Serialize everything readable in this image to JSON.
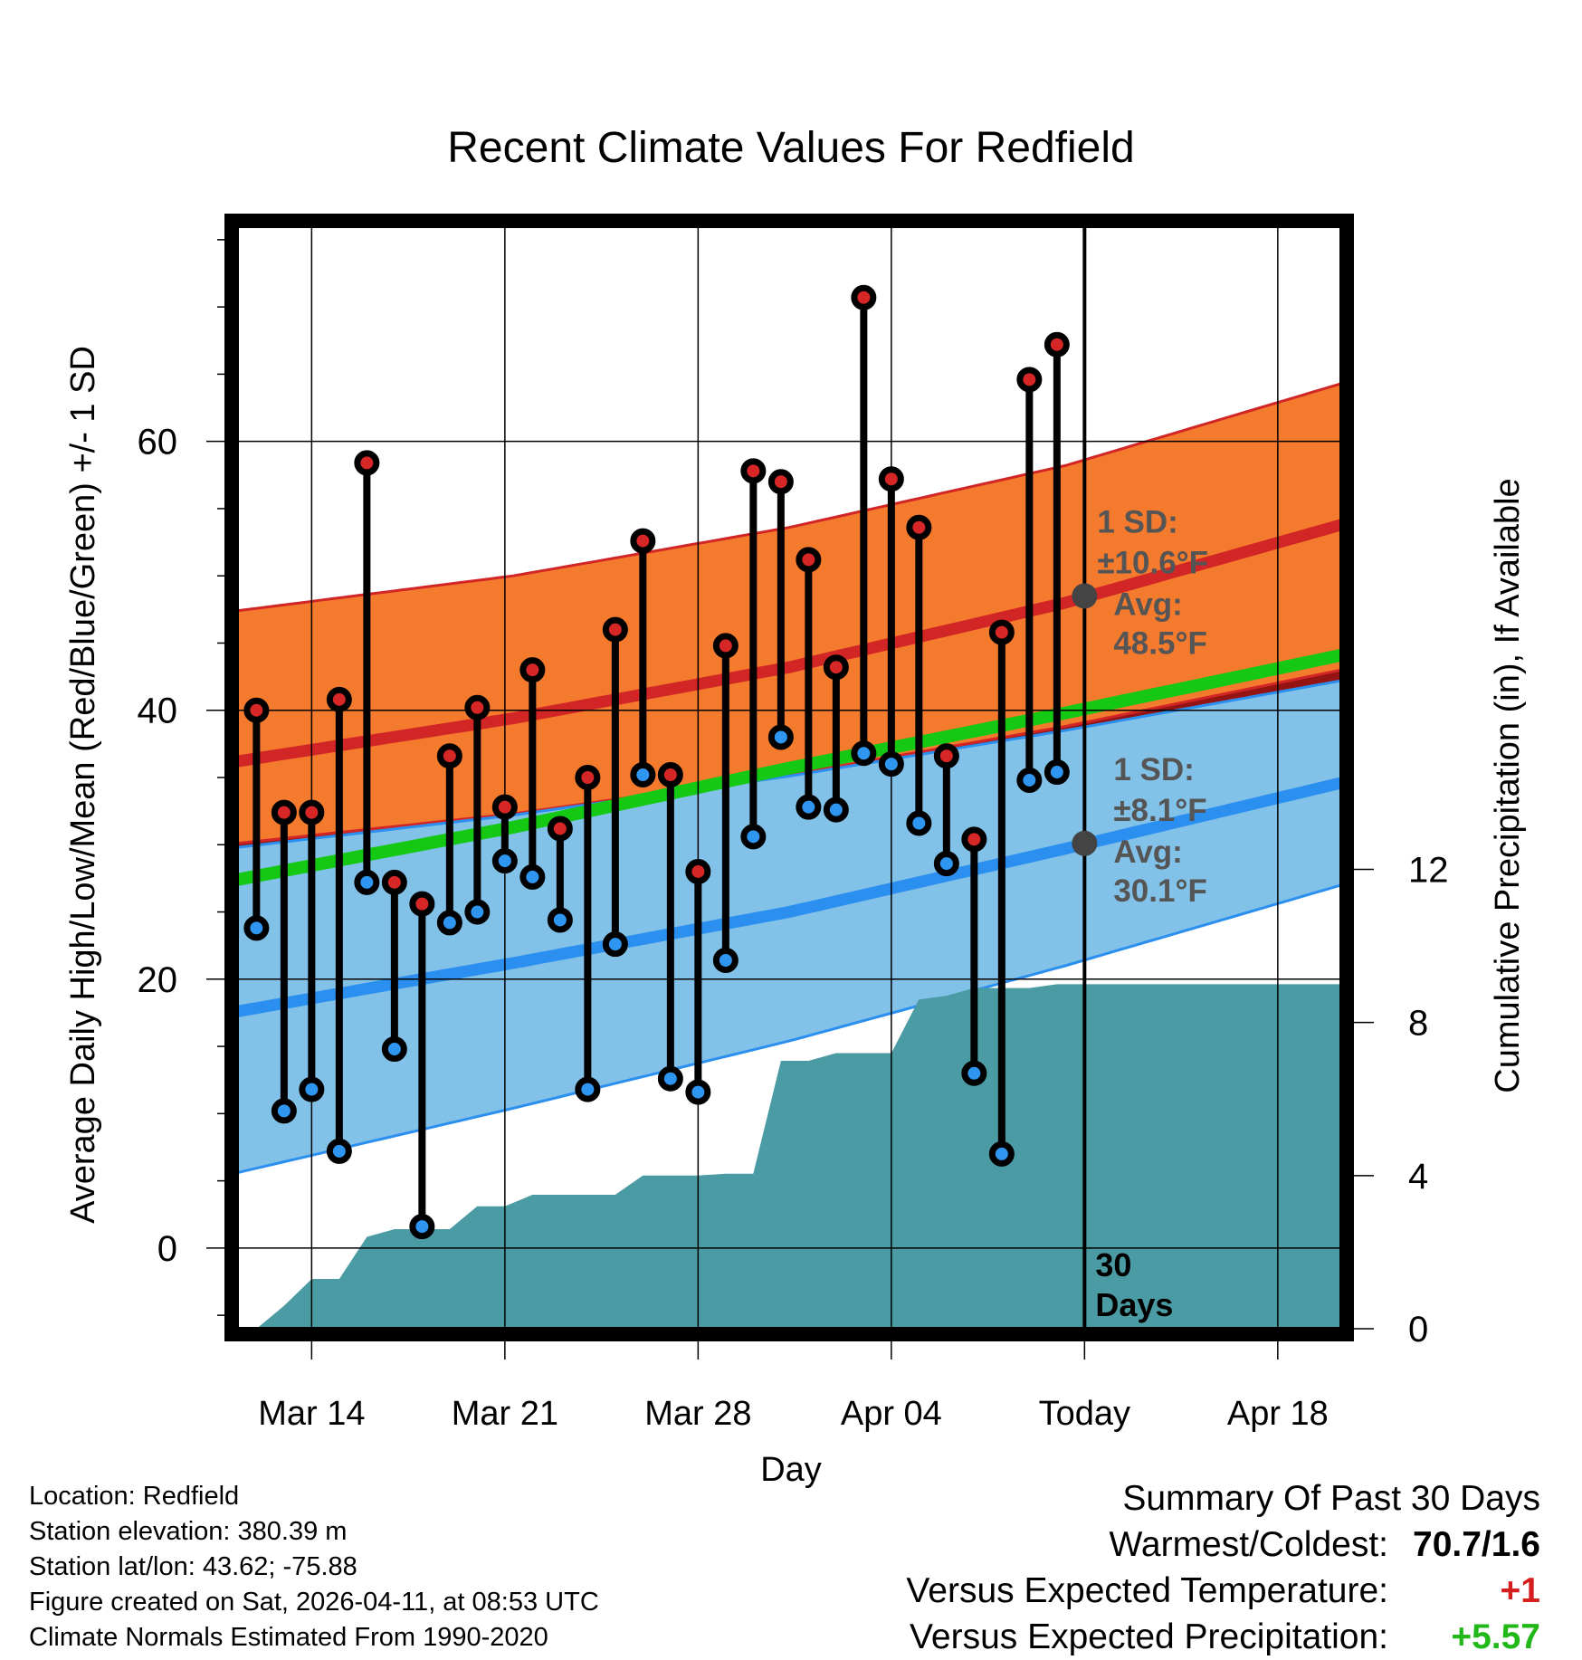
{
  "chart_data": {
    "type": "line",
    "title": "Recent Climate Values For Redfield",
    "xlabel": "Day",
    "ylabel": "Average Daily High/Low/Mean (Red/Blue/Green) +/- 1 SD",
    "y2label": "Cumulative Precipitation (in), If Available",
    "xlim": [
      0,
      40
    ],
    "ylim": [
      -6,
      76
    ],
    "y2lim": [
      0,
      28.8
    ],
    "x_ticks": [
      {
        "x": 2.7,
        "label": "Mar 14"
      },
      {
        "x": 9.7,
        "label": "Mar 21"
      },
      {
        "x": 16.7,
        "label": "Mar 28"
      },
      {
        "x": 23.7,
        "label": "Apr 04"
      },
      {
        "x": 30.7,
        "label": "Today"
      },
      {
        "x": 37.7,
        "label": "Apr 18"
      }
    ],
    "y_ticks": [
      0,
      20,
      40,
      60
    ],
    "y2_ticks": [
      0,
      4,
      8,
      12
    ],
    "today_x": 30.7,
    "today_label": "30\nDays",
    "normal_high": {
      "mean": [
        [
          0,
          36.2
        ],
        [
          10,
          39.4
        ],
        [
          20,
          43.2
        ],
        [
          30,
          48.0
        ],
        [
          40,
          53.8
        ]
      ],
      "upper": [
        [
          0,
          47.4
        ],
        [
          10,
          50.0
        ],
        [
          20,
          53.6
        ],
        [
          30,
          58.2
        ],
        [
          40,
          64.3
        ]
      ],
      "lower": [
        [
          0,
          30.1
        ],
        [
          10,
          32.3
        ],
        [
          20,
          35.2
        ],
        [
          30,
          38.8
        ],
        [
          40,
          43.0
        ]
      ],
      "sd_label": "1 SD:",
      "sd_value": "±10.6°F",
      "avg_label": "Avg:",
      "avg_value": "48.5°F",
      "today_avg": 48.5
    },
    "normal_low": {
      "mean": [
        [
          0,
          17.6
        ],
        [
          10,
          21.2
        ],
        [
          20,
          25.0
        ],
        [
          30,
          29.7
        ],
        [
          40,
          34.6
        ]
      ],
      "upper": [
        [
          0,
          29.8
        ],
        [
          10,
          32.2
        ],
        [
          20,
          35.1
        ],
        [
          30,
          38.5
        ],
        [
          40,
          42.2
        ]
      ],
      "lower": [
        [
          0,
          5.6
        ],
        [
          10,
          10.4
        ],
        [
          20,
          15.4
        ],
        [
          30,
          21.0
        ],
        [
          40,
          27.0
        ]
      ],
      "sd_label": "1 SD:",
      "sd_value": "±8.1°F",
      "avg_label": "Avg:",
      "avg_value": "30.1°F",
      "today_avg": 30.1
    },
    "normal_mean": [
      [
        0,
        27.4
      ],
      [
        10,
        31.3
      ],
      [
        20,
        35.7
      ],
      [
        30,
        39.8
      ],
      [
        40,
        44.1
      ]
    ],
    "daily": [
      {
        "x": 0.7,
        "high": 40.0,
        "low": 23.8
      },
      {
        "x": 1.7,
        "high": 32.4,
        "low": 10.2
      },
      {
        "x": 2.7,
        "high": 32.4,
        "low": 11.8
      },
      {
        "x": 3.7,
        "high": 40.8,
        "low": 7.2
      },
      {
        "x": 4.7,
        "high": 58.4,
        "low": 27.2
      },
      {
        "x": 5.7,
        "high": 27.2,
        "low": 14.8
      },
      {
        "x": 6.7,
        "high": 25.6,
        "low": 1.6
      },
      {
        "x": 7.7,
        "high": 36.6,
        "low": 24.2
      },
      {
        "x": 8.7,
        "high": 40.2,
        "low": 25.0
      },
      {
        "x": 9.7,
        "high": 32.8,
        "low": 28.8
      },
      {
        "x": 10.7,
        "high": 43.0,
        "low": 27.6
      },
      {
        "x": 11.7,
        "high": 31.2,
        "low": 24.4
      },
      {
        "x": 12.7,
        "high": 35.0,
        "low": 11.8
      },
      {
        "x": 13.7,
        "high": 46.0,
        "low": 22.6
      },
      {
        "x": 14.7,
        "high": 52.6,
        "low": 35.2
      },
      {
        "x": 15.7,
        "high": 35.2,
        "low": 12.6
      },
      {
        "x": 16.7,
        "high": 28.0,
        "low": 11.6
      },
      {
        "x": 17.7,
        "high": 44.8,
        "low": 21.4
      },
      {
        "x": 18.7,
        "high": 57.8,
        "low": 30.6
      },
      {
        "x": 19.7,
        "high": 57.0,
        "low": 38.0
      },
      {
        "x": 20.7,
        "high": 51.2,
        "low": 32.8
      },
      {
        "x": 21.7,
        "high": 43.2,
        "low": 32.6
      },
      {
        "x": 22.7,
        "high": 70.7,
        "low": 36.8
      },
      {
        "x": 23.7,
        "high": 57.2,
        "low": 36.0
      },
      {
        "x": 24.7,
        "high": 53.6,
        "low": 31.6
      },
      {
        "x": 25.7,
        "high": 36.6,
        "low": 28.6
      },
      {
        "x": 26.7,
        "high": 30.4,
        "low": 13.0
      },
      {
        "x": 27.7,
        "high": 45.8,
        "low": 7.0
      },
      {
        "x": 28.7,
        "high": 64.6,
        "low": 34.8
      },
      {
        "x": 29.7,
        "high": 67.2,
        "low": 35.4
      }
    ],
    "precip_cumulative": [
      [
        0.7,
        0
      ],
      [
        1.7,
        0.6
      ],
      [
        2.7,
        1.3
      ],
      [
        3.7,
        1.3
      ],
      [
        4.7,
        2.4
      ],
      [
        5.7,
        2.6
      ],
      [
        6.7,
        2.6
      ],
      [
        7.7,
        2.6
      ],
      [
        8.7,
        3.2
      ],
      [
        9.7,
        3.2
      ],
      [
        10.7,
        3.5
      ],
      [
        11.7,
        3.5
      ],
      [
        12.7,
        3.5
      ],
      [
        13.7,
        3.5
      ],
      [
        14.7,
        4.0
      ],
      [
        15.7,
        4.0
      ],
      [
        16.7,
        4.0
      ],
      [
        17.7,
        4.05
      ],
      [
        18.7,
        4.05
      ],
      [
        19.7,
        7.0
      ],
      [
        20.7,
        7.0
      ],
      [
        21.7,
        7.2
      ],
      [
        22.7,
        7.2
      ],
      [
        23.7,
        7.2
      ],
      [
        24.7,
        8.6
      ],
      [
        25.7,
        8.7
      ],
      [
        26.7,
        8.9
      ],
      [
        27.7,
        8.9
      ],
      [
        28.7,
        8.9
      ],
      [
        29.7,
        9.0
      ],
      [
        30.7,
        9.0
      ],
      [
        40,
        9.0
      ]
    ],
    "colors": {
      "high_band": "#f47a2e",
      "high_line": "#d22526",
      "low_band": "#82c1e8",
      "low_line": "#2b8ff0",
      "overlap": "#941414",
      "mean_line": "#14c814",
      "precip": "#4a9ba4",
      "high_dot": "#d62626",
      "low_dot": "#2e96f0",
      "label_gray": "#555555"
    }
  },
  "footer": {
    "location": "Location: Redfield",
    "elevation": "Station elevation: 380.39 m",
    "latlon": "Station lat/lon: 43.62; -75.88",
    "created": "Figure created on Sat, 2026-04-11, at 08:53 UTC",
    "normals": "Climate Normals Estimated From 1990-2020"
  },
  "summary": {
    "heading": "Summary Of Past 30 Days",
    "warm_label": "Warmest/Coldest:",
    "warm_value": "70.7/1.6",
    "temp_label": "Versus Expected Temperature:",
    "temp_value": "+1",
    "precip_label": "Versus Expected Precipitation:",
    "precip_value": "+5.57"
  }
}
